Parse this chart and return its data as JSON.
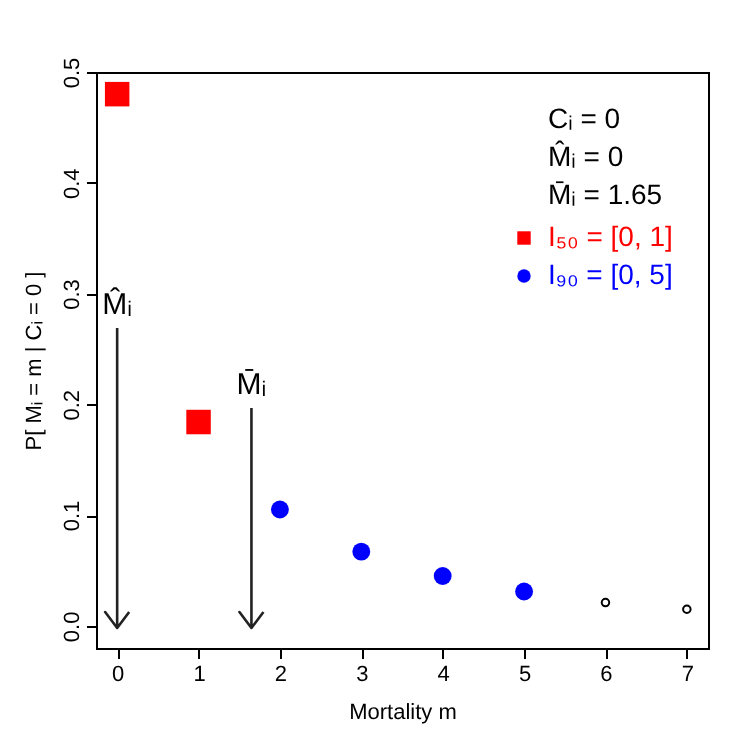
{
  "chart_data": {
    "type": "scatter",
    "xlabel": "Mortality m",
    "ylabel": "P[ Mᵢ = m | Cᵢ = 0 ]",
    "x": [
      0,
      1,
      2,
      3,
      4,
      5,
      6,
      7
    ],
    "series": [
      {
        "name": "I₅₀ = [0, 1]",
        "color": "#ff0000",
        "marker": "square",
        "values": [
          0.48,
          0.184,
          null,
          null,
          null,
          null,
          null,
          null
        ]
      },
      {
        "name": "I₉₀ = [0, 5]",
        "color": "#0000ff",
        "marker": "circle",
        "values": [
          null,
          null,
          0.105,
          0.067,
          0.045,
          0.031,
          null,
          null
        ]
      },
      {
        "color": "#000000",
        "marker": "circle",
        "values": [
          null,
          null,
          null,
          null,
          null,
          null,
          0.021,
          0.015
        ]
      }
    ],
    "xlim": [
      -0.26,
      7.26
    ],
    "ylim": [
      -0.02,
      0.5
    ],
    "xticks": [
      0,
      1,
      2,
      3,
      4,
      5,
      6,
      7
    ],
    "yticks": [
      {
        "value": 0,
        "label": "0.0"
      },
      0.1,
      0.2,
      0.3,
      0.4,
      0.5
    ],
    "annotations": [
      "Cᵢ = 0",
      "M̂ᵢ = 0",
      "M̄ᵢ = 1.65"
    ],
    "ref_lines": [
      {
        "axis": "x",
        "value": 0,
        "label": "M̂ᵢ"
      },
      {
        "axis": "x",
        "value": 1.65,
        "label": "M̄ᵢ"
      }
    ],
    "legend": "top right",
    "grid": false
  }
}
